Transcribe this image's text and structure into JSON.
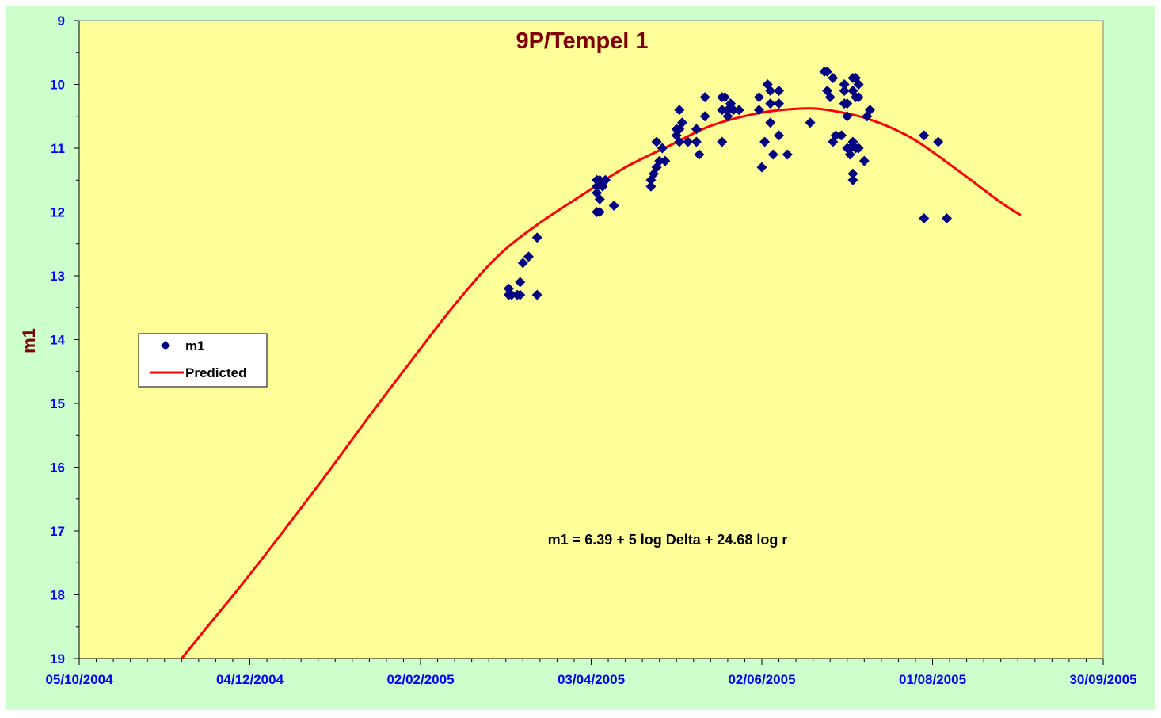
{
  "chart_data": {
    "type": "scatter",
    "title": "9P/Tempel 1",
    "ylabel": "m1",
    "xlabel": "",
    "x_ticks": [
      "05/10/2004",
      "04/12/2004",
      "02/02/2005",
      "03/04/2005",
      "02/06/2005",
      "01/08/2005",
      "30/09/2005"
    ],
    "xlim": [
      "05/10/2004",
      "30/09/2005"
    ],
    "ylim": [
      9,
      19
    ],
    "y_reversed": true,
    "y_ticks": [
      9,
      10,
      11,
      12,
      13,
      14,
      15,
      16,
      17,
      18,
      19
    ],
    "annotation": "m1 = 6.39 + 5 log Delta + 24.68 log r",
    "legend": {
      "placement": "left",
      "entries": [
        {
          "label": "m1",
          "marker": "diamond",
          "color": "#000080"
        },
        {
          "label": "Predicted",
          "marker": "line",
          "color": "#ff0000"
        }
      ]
    },
    "colors": {
      "plot_background": "#ffff99",
      "outer_background": "#ccffcc",
      "title": "#800000",
      "ylabel": "#800000",
      "tick_labels": "#0000ff",
      "markers": "#000080",
      "predicted_line": "#ff0000"
    },
    "series": [
      {
        "name": "m1",
        "kind": "scatter",
        "points": [
          {
            "x": "2005-03-05",
            "y": 13.2
          },
          {
            "x": "2005-03-05",
            "y": 13.3
          },
          {
            "x": "2005-03-06",
            "y": 13.3
          },
          {
            "x": "2005-03-08",
            "y": 13.3
          },
          {
            "x": "2005-03-09",
            "y": 13.1
          },
          {
            "x": "2005-03-09",
            "y": 13.3
          },
          {
            "x": "2005-03-10",
            "y": 12.8
          },
          {
            "x": "2005-03-12",
            "y": 12.7
          },
          {
            "x": "2005-03-15",
            "y": 12.4
          },
          {
            "x": "2005-03-15",
            "y": 13.3
          },
          {
            "x": "2005-04-05",
            "y": 11.5
          },
          {
            "x": "2005-04-05",
            "y": 11.6
          },
          {
            "x": "2005-04-05",
            "y": 11.7
          },
          {
            "x": "2005-04-05",
            "y": 12.0
          },
          {
            "x": "2005-04-06",
            "y": 12.0
          },
          {
            "x": "2005-04-06",
            "y": 11.8
          },
          {
            "x": "2005-04-06",
            "y": 11.5
          },
          {
            "x": "2005-04-07",
            "y": 11.6
          },
          {
            "x": "2005-04-08",
            "y": 11.5
          },
          {
            "x": "2005-04-11",
            "y": 11.9
          },
          {
            "x": "2005-04-24",
            "y": 11.6
          },
          {
            "x": "2005-04-24",
            "y": 11.5
          },
          {
            "x": "2005-04-25",
            "y": 11.4
          },
          {
            "x": "2005-04-26",
            "y": 11.3
          },
          {
            "x": "2005-04-26",
            "y": 10.9
          },
          {
            "x": "2005-04-27",
            "y": 11.2
          },
          {
            "x": "2005-04-28",
            "y": 11.0
          },
          {
            "x": "2005-04-29",
            "y": 11.2
          },
          {
            "x": "2005-05-03",
            "y": 10.7
          },
          {
            "x": "2005-05-03",
            "y": 10.8
          },
          {
            "x": "2005-05-04",
            "y": 10.9
          },
          {
            "x": "2005-05-04",
            "y": 10.4
          },
          {
            "x": "2005-05-04",
            "y": 10.7
          },
          {
            "x": "2005-05-05",
            "y": 10.6
          },
          {
            "x": "2005-05-07",
            "y": 10.9
          },
          {
            "x": "2005-05-10",
            "y": 10.9
          },
          {
            "x": "2005-05-10",
            "y": 10.7
          },
          {
            "x": "2005-05-11",
            "y": 11.1
          },
          {
            "x": "2005-05-13",
            "y": 10.2
          },
          {
            "x": "2005-05-13",
            "y": 10.5
          },
          {
            "x": "2005-05-19",
            "y": 10.4
          },
          {
            "x": "2005-05-19",
            "y": 10.2
          },
          {
            "x": "2005-05-19",
            "y": 10.9
          },
          {
            "x": "2005-05-20",
            "y": 10.2
          },
          {
            "x": "2005-05-21",
            "y": 10.4
          },
          {
            "x": "2005-05-21",
            "y": 10.5
          },
          {
            "x": "2005-05-22",
            "y": 10.3
          },
          {
            "x": "2005-05-23",
            "y": 10.4
          },
          {
            "x": "2005-05-25",
            "y": 10.4
          },
          {
            "x": "2005-06-01",
            "y": 10.2
          },
          {
            "x": "2005-06-01",
            "y": 10.4
          },
          {
            "x": "2005-06-02",
            "y": 11.3
          },
          {
            "x": "2005-06-03",
            "y": 10.9
          },
          {
            "x": "2005-06-04",
            "y": 10.0
          },
          {
            "x": "2005-06-05",
            "y": 10.1
          },
          {
            "x": "2005-06-05",
            "y": 10.3
          },
          {
            "x": "2005-06-05",
            "y": 10.6
          },
          {
            "x": "2005-06-06",
            "y": 11.1
          },
          {
            "x": "2005-06-08",
            "y": 10.3
          },
          {
            "x": "2005-06-08",
            "y": 10.8
          },
          {
            "x": "2005-06-08",
            "y": 10.1
          },
          {
            "x": "2005-06-11",
            "y": 11.1
          },
          {
            "x": "2005-06-19",
            "y": 10.6
          },
          {
            "x": "2005-06-24",
            "y": 9.8
          },
          {
            "x": "2005-06-25",
            "y": 10.1
          },
          {
            "x": "2005-06-25",
            "y": 9.8
          },
          {
            "x": "2005-06-26",
            "y": 10.2
          },
          {
            "x": "2005-06-27",
            "y": 9.9
          },
          {
            "x": "2005-06-27",
            "y": 10.9
          },
          {
            "x": "2005-06-28",
            "y": 10.8
          },
          {
            "x": "2005-06-30",
            "y": 10.8
          },
          {
            "x": "2005-07-01",
            "y": 10.0
          },
          {
            "x": "2005-07-01",
            "y": 10.1
          },
          {
            "x": "2005-07-01",
            "y": 10.3
          },
          {
            "x": "2005-07-02",
            "y": 10.5
          },
          {
            "x": "2005-07-02",
            "y": 11.0
          },
          {
            "x": "2005-07-02",
            "y": 10.3
          },
          {
            "x": "2005-07-03",
            "y": 11.1
          },
          {
            "x": "2005-07-03",
            "y": 11.0
          },
          {
            "x": "2005-07-04",
            "y": 9.9
          },
          {
            "x": "2005-07-04",
            "y": 10.1
          },
          {
            "x": "2005-07-04",
            "y": 11.4
          },
          {
            "x": "2005-07-04",
            "y": 11.5
          },
          {
            "x": "2005-07-04",
            "y": 10.9
          },
          {
            "x": "2005-07-05",
            "y": 9.9
          },
          {
            "x": "2005-07-05",
            "y": 10.2
          },
          {
            "x": "2005-07-05",
            "y": 11.0
          },
          {
            "x": "2005-07-06",
            "y": 10.0
          },
          {
            "x": "2005-07-06",
            "y": 10.2
          },
          {
            "x": "2005-07-06",
            "y": 11.0
          },
          {
            "x": "2005-07-08",
            "y": 11.2
          },
          {
            "x": "2005-07-09",
            "y": 10.5
          },
          {
            "x": "2005-07-10",
            "y": 10.4
          },
          {
            "x": "2005-07-29",
            "y": 10.8
          },
          {
            "x": "2005-07-29",
            "y": 12.1
          },
          {
            "x": "2005-08-03",
            "y": 10.9
          },
          {
            "x": "2005-08-06",
            "y": 12.1
          }
        ]
      },
      {
        "name": "Predicted",
        "kind": "line",
        "points": [
          {
            "x": "2004-11-10",
            "y": 19.0
          },
          {
            "x": "2004-11-20",
            "y": 18.45
          },
          {
            "x": "2004-12-01",
            "y": 17.85
          },
          {
            "x": "2004-12-15",
            "y": 17.05
          },
          {
            "x": "2005-01-01",
            "y": 16.05
          },
          {
            "x": "2005-01-15",
            "y": 15.2
          },
          {
            "x": "2005-02-01",
            "y": 14.2
          },
          {
            "x": "2005-02-15",
            "y": 13.4
          },
          {
            "x": "2005-03-01",
            "y": 12.7
          },
          {
            "x": "2005-03-15",
            "y": 12.2
          },
          {
            "x": "2005-04-01",
            "y": 11.7
          },
          {
            "x": "2005-04-15",
            "y": 11.3
          },
          {
            "x": "2005-05-01",
            "y": 10.95
          },
          {
            "x": "2005-05-15",
            "y": 10.65
          },
          {
            "x": "2005-06-01",
            "y": 10.45
          },
          {
            "x": "2005-06-15",
            "y": 10.38
          },
          {
            "x": "2005-06-25",
            "y": 10.4
          },
          {
            "x": "2005-07-10",
            "y": 10.55
          },
          {
            "x": "2005-07-25",
            "y": 10.85
          },
          {
            "x": "2005-08-10",
            "y": 11.35
          },
          {
            "x": "2005-08-25",
            "y": 11.85
          },
          {
            "x": "2005-09-01",
            "y": 12.05
          }
        ]
      }
    ]
  }
}
